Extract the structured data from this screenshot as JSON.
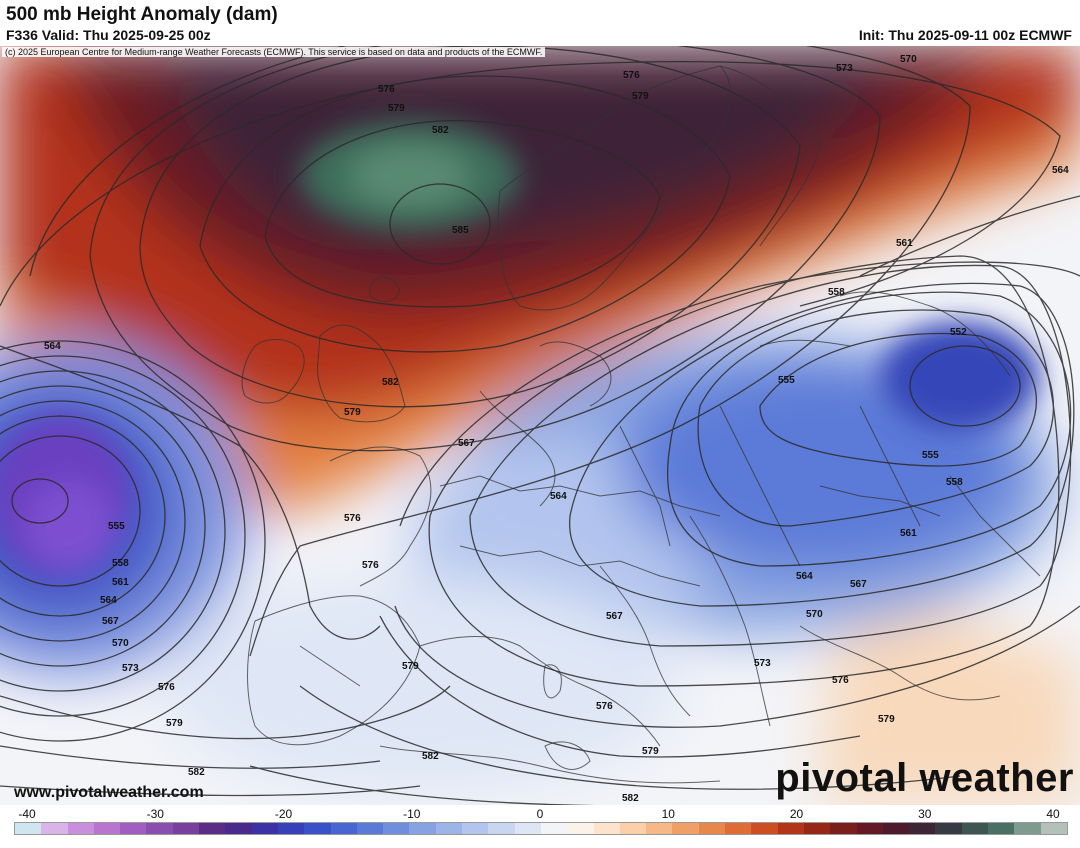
{
  "header": {
    "title": "500 mb Height Anomaly (dam)",
    "valid": "F336 Valid: Thu 2025-09-25 00z",
    "init": "Init: Thu 2025-09-11 00z ECMWF"
  },
  "copyright": "(c) 2025 European Centre for Medium-range Weather Forecasts (ECMWF). This service is based on data and products of the ECMWF.",
  "watermark": {
    "url": "www.pivotalweather.com",
    "brand": "pivotal weather"
  },
  "contour_labels": [
    "585",
    "582",
    "579",
    "576",
    "573",
    "570",
    "567",
    "564",
    "561",
    "558",
    "555",
    "552"
  ],
  "colorbar": {
    "ticks": [
      "-40",
      "-30",
      "-20",
      "-10",
      "0",
      "10",
      "20",
      "30",
      "40"
    ],
    "colors": [
      "#cfe6f0",
      "#d8b4e8",
      "#c98fdc",
      "#b874cf",
      "#a05ec0",
      "#8a4fae",
      "#7a3f9e",
      "#5b2d86",
      "#4a2a8a",
      "#3d31a6",
      "#3640b8",
      "#3a52c8",
      "#4866d2",
      "#5b7ad8",
      "#6f8edd",
      "#86a2e2",
      "#9db4e8",
      "#b3c5ee",
      "#c9d6f2",
      "#dee6f6",
      "#f2f4f8",
      "#fbf2ea",
      "#fde3cc",
      "#fbcfa8",
      "#f6b886",
      "#f0a067",
      "#e8874c",
      "#de6c33",
      "#cc4e22",
      "#b23519",
      "#952716",
      "#7a1f1c",
      "#631a24",
      "#4d1a2c",
      "#3d2436",
      "#363a44",
      "#3e5552",
      "#4a6f64",
      "#7f9a8e",
      "#b4c0ba"
    ]
  }
}
